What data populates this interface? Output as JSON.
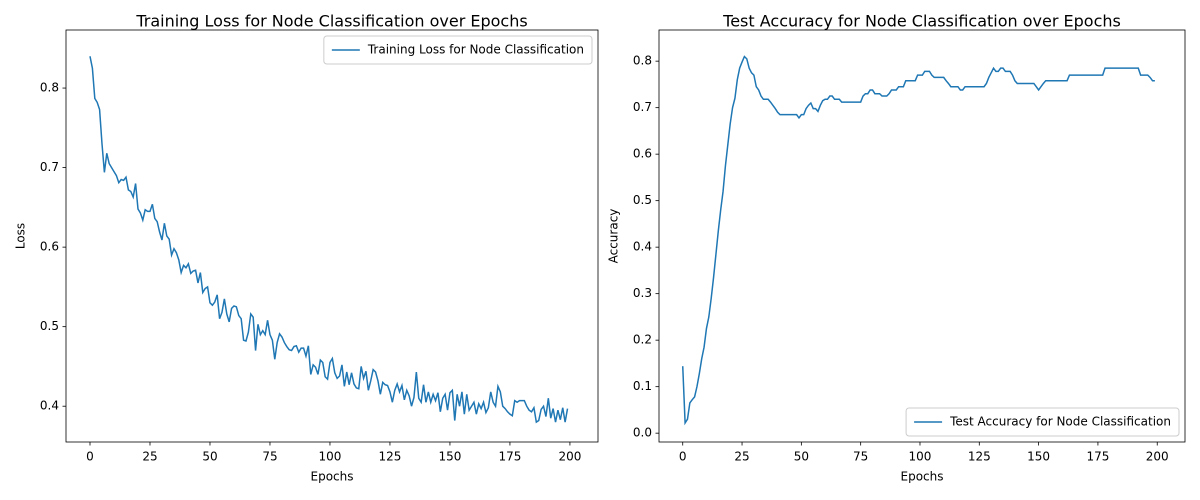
{
  "chart_data": [
    {
      "type": "line",
      "title": "Training Loss for Node Classification over Epochs",
      "x_label": "Epochs",
      "y_label": "Loss",
      "x": [
        0,
        1,
        2,
        3,
        4,
        5,
        6,
        7,
        8,
        9,
        10,
        11,
        12,
        13,
        14,
        15,
        16,
        17,
        18,
        19,
        20,
        21,
        22,
        23,
        24,
        25,
        26,
        27,
        28,
        29,
        30,
        31,
        32,
        33,
        34,
        35,
        36,
        37,
        38,
        39,
        40,
        41,
        42,
        43,
        44,
        45,
        46,
        47,
        48,
        49,
        50,
        51,
        52,
        53,
        54,
        55,
        56,
        57,
        58,
        59,
        60,
        61,
        62,
        63,
        64,
        65,
        66,
        67,
        68,
        69,
        70,
        71,
        72,
        73,
        74,
        75,
        76,
        77,
        78,
        79,
        80,
        81,
        82,
        83,
        84,
        85,
        86,
        87,
        88,
        89,
        90,
        91,
        92,
        93,
        94,
        95,
        96,
        97,
        98,
        99,
        100,
        101,
        102,
        103,
        104,
        105,
        106,
        107,
        108,
        109,
        110,
        111,
        112,
        113,
        114,
        115,
        116,
        117,
        118,
        119,
        120,
        121,
        122,
        123,
        124,
        125,
        126,
        127,
        128,
        129,
        130,
        131,
        132,
        133,
        134,
        135,
        136,
        137,
        138,
        139,
        140,
        141,
        142,
        143,
        144,
        145,
        146,
        147,
        148,
        149,
        150,
        151,
        152,
        153,
        154,
        155,
        156,
        157,
        158,
        159,
        160,
        161,
        162,
        163,
        164,
        165,
        166,
        167,
        168,
        169,
        170,
        171,
        172,
        173,
        174,
        175,
        176,
        177,
        178,
        179,
        180,
        181,
        182,
        183,
        184,
        185,
        186,
        187,
        188,
        189,
        190,
        191,
        192,
        193,
        194,
        195,
        196,
        197,
        198,
        199
      ],
      "series": [
        {
          "name": "Training Loss for Node Classification",
          "color": "#1f77b4",
          "values": [
            0.84,
            0.825,
            0.787,
            0.782,
            0.773,
            0.73,
            0.694,
            0.718,
            0.705,
            0.7,
            0.695,
            0.69,
            0.681,
            0.685,
            0.684,
            0.688,
            0.672,
            0.67,
            0.663,
            0.68,
            0.648,
            0.643,
            0.634,
            0.647,
            0.645,
            0.645,
            0.654,
            0.636,
            0.632,
            0.619,
            0.609,
            0.63,
            0.614,
            0.61,
            0.59,
            0.598,
            0.593,
            0.584,
            0.568,
            0.577,
            0.574,
            0.579,
            0.567,
            0.57,
            0.571,
            0.555,
            0.568,
            0.543,
            0.548,
            0.55,
            0.53,
            0.527,
            0.531,
            0.54,
            0.51,
            0.518,
            0.535,
            0.516,
            0.506,
            0.523,
            0.526,
            0.525,
            0.514,
            0.51,
            0.483,
            0.482,
            0.493,
            0.516,
            0.512,
            0.47,
            0.503,
            0.49,
            0.495,
            0.49,
            0.508,
            0.49,
            0.483,
            0.459,
            0.48,
            0.491,
            0.487,
            0.48,
            0.475,
            0.471,
            0.47,
            0.475,
            0.476,
            0.468,
            0.473,
            0.473,
            0.463,
            0.476,
            0.44,
            0.452,
            0.449,
            0.44,
            0.458,
            0.455,
            0.437,
            0.434,
            0.455,
            0.46,
            0.442,
            0.435,
            0.438,
            0.452,
            0.425,
            0.443,
            0.427,
            0.442,
            0.428,
            0.423,
            0.422,
            0.45,
            0.435,
            0.444,
            0.42,
            0.432,
            0.446,
            0.443,
            0.432,
            0.415,
            0.43,
            0.427,
            0.426,
            0.418,
            0.405,
            0.42,
            0.428,
            0.418,
            0.426,
            0.408,
            0.42,
            0.413,
            0.4,
            0.411,
            0.443,
            0.41,
            0.405,
            0.427,
            0.405,
            0.418,
            0.405,
            0.415,
            0.407,
            0.417,
            0.393,
            0.41,
            0.415,
            0.395,
            0.417,
            0.42,
            0.382,
            0.415,
            0.4,
            0.418,
            0.39,
            0.415,
            0.395,
            0.4,
            0.405,
            0.39,
            0.403,
            0.397,
            0.405,
            0.392,
            0.398,
            0.418,
            0.405,
            0.4,
            0.425,
            0.418,
            0.4,
            0.397,
            0.393,
            0.39,
            0.388,
            0.407,
            0.405,
            0.407,
            0.407,
            0.407,
            0.4,
            0.395,
            0.393,
            0.398,
            0.38,
            0.382,
            0.396,
            0.4,
            0.387,
            0.41,
            0.385,
            0.397,
            0.38,
            0.395,
            0.383,
            0.398,
            0.38,
            0.397
          ]
        }
      ],
      "xlim": [
        -10,
        211.7
      ],
      "xticks": [
        0,
        25,
        50,
        75,
        100,
        125,
        150,
        175,
        200
      ],
      "ylim": [
        0.355,
        0.873
      ],
      "yticks": [
        0.4,
        0.5,
        0.6,
        0.7,
        0.8
      ],
      "legend": "upper right"
    },
    {
      "type": "line",
      "title": "Test Accuracy for Node Classification over Epochs",
      "x_label": "Epochs",
      "y_label": "Accuracy",
      "x": [
        0,
        1,
        2,
        3,
        4,
        5,
        6,
        7,
        8,
        9,
        10,
        11,
        12,
        13,
        14,
        15,
        16,
        17,
        18,
        19,
        20,
        21,
        22,
        23,
        24,
        25,
        26,
        27,
        28,
        29,
        30,
        31,
        32,
        33,
        34,
        35,
        36,
        37,
        38,
        39,
        40,
        41,
        42,
        43,
        44,
        45,
        46,
        47,
        48,
        49,
        50,
        51,
        52,
        53,
        54,
        55,
        56,
        57,
        58,
        59,
        60,
        61,
        62,
        63,
        64,
        65,
        66,
        67,
        68,
        69,
        70,
        71,
        72,
        73,
        74,
        75,
        76,
        77,
        78,
        79,
        80,
        81,
        82,
        83,
        84,
        85,
        86,
        87,
        88,
        89,
        90,
        91,
        92,
        93,
        94,
        95,
        96,
        97,
        98,
        99,
        100,
        101,
        102,
        103,
        104,
        105,
        106,
        107,
        108,
        109,
        110,
        111,
        112,
        113,
        114,
        115,
        116,
        117,
        118,
        119,
        120,
        121,
        122,
        123,
        124,
        125,
        126,
        127,
        128,
        129,
        130,
        131,
        132,
        133,
        134,
        135,
        136,
        137,
        138,
        139,
        140,
        141,
        142,
        143,
        144,
        145,
        146,
        147,
        148,
        149,
        150,
        151,
        152,
        153,
        154,
        155,
        156,
        157,
        158,
        159,
        160,
        161,
        162,
        163,
        164,
        165,
        166,
        167,
        168,
        169,
        170,
        171,
        172,
        173,
        174,
        175,
        176,
        177,
        178,
        179,
        180,
        181,
        182,
        183,
        184,
        185,
        186,
        187,
        188,
        189,
        190,
        191,
        192,
        193,
        194,
        195,
        196,
        197,
        198,
        199
      ],
      "series": [
        {
          "name": "Test Accuracy for Node Classification",
          "color": "#1f77b4",
          "values": [
            0.144,
            0.022,
            0.03,
            0.065,
            0.072,
            0.078,
            0.1,
            0.128,
            0.16,
            0.185,
            0.225,
            0.25,
            0.29,
            0.335,
            0.385,
            0.435,
            0.48,
            0.52,
            0.575,
            0.62,
            0.665,
            0.7,
            0.72,
            0.76,
            0.785,
            0.798,
            0.81,
            0.805,
            0.785,
            0.775,
            0.77,
            0.745,
            0.738,
            0.725,
            0.718,
            0.718,
            0.718,
            0.712,
            0.705,
            0.698,
            0.69,
            0.685,
            0.685,
            0.685,
            0.685,
            0.685,
            0.685,
            0.685,
            0.685,
            0.678,
            0.685,
            0.685,
            0.698,
            0.705,
            0.71,
            0.698,
            0.698,
            0.692,
            0.705,
            0.715,
            0.718,
            0.718,
            0.725,
            0.725,
            0.718,
            0.718,
            0.718,
            0.712,
            0.712,
            0.712,
            0.712,
            0.712,
            0.712,
            0.712,
            0.712,
            0.712,
            0.725,
            0.73,
            0.73,
            0.738,
            0.738,
            0.73,
            0.73,
            0.73,
            0.725,
            0.725,
            0.725,
            0.73,
            0.738,
            0.738,
            0.738,
            0.745,
            0.745,
            0.745,
            0.758,
            0.758,
            0.758,
            0.758,
            0.758,
            0.77,
            0.77,
            0.77,
            0.778,
            0.778,
            0.778,
            0.77,
            0.765,
            0.765,
            0.765,
            0.765,
            0.765,
            0.758,
            0.752,
            0.745,
            0.745,
            0.745,
            0.745,
            0.738,
            0.738,
            0.745,
            0.745,
            0.745,
            0.745,
            0.745,
            0.745,
            0.745,
            0.745,
            0.745,
            0.752,
            0.765,
            0.775,
            0.785,
            0.778,
            0.778,
            0.785,
            0.785,
            0.778,
            0.778,
            0.778,
            0.77,
            0.758,
            0.752,
            0.752,
            0.752,
            0.752,
            0.752,
            0.752,
            0.752,
            0.752,
            0.745,
            0.738,
            0.745,
            0.752,
            0.758,
            0.758,
            0.758,
            0.758,
            0.758,
            0.758,
            0.758,
            0.758,
            0.758,
            0.758,
            0.77,
            0.77,
            0.77,
            0.77,
            0.77,
            0.77,
            0.77,
            0.77,
            0.77,
            0.77,
            0.77,
            0.77,
            0.77,
            0.77,
            0.77,
            0.785,
            0.785,
            0.785,
            0.785,
            0.785,
            0.785,
            0.785,
            0.785,
            0.785,
            0.785,
            0.785,
            0.785,
            0.785,
            0.785,
            0.785,
            0.77,
            0.77,
            0.77,
            0.77,
            0.765,
            0.758,
            0.758
          ]
        }
      ],
      "xlim": [
        -10,
        211.7
      ],
      "xticks": [
        0,
        25,
        50,
        75,
        100,
        125,
        150,
        175,
        200
      ],
      "ylim": [
        -0.019,
        0.867
      ],
      "yticks": [
        0.0,
        0.1,
        0.2,
        0.3,
        0.4,
        0.5,
        0.6,
        0.7,
        0.8
      ],
      "legend": "lower right"
    }
  ]
}
